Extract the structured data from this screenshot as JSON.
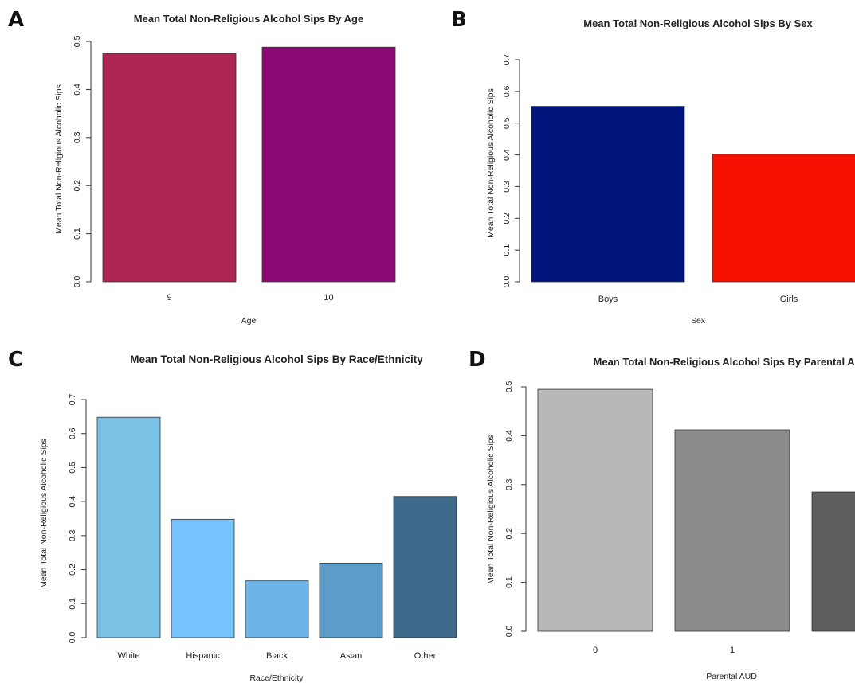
{
  "chart_data": [
    {
      "panel": "A",
      "type": "bar",
      "title": "Mean Total Non-Religious Alcohol Sips By Age",
      "xlabel": "Age",
      "ylabel": "Mean Total Non-Religious Alcoholic Sips",
      "categories": [
        "9",
        "10"
      ],
      "values": [
        0.475,
        0.488
      ],
      "colors": [
        "#ad2553",
        "#8b0a73"
      ],
      "ylim": [
        0,
        0.5
      ],
      "yticks": [
        "0.0",
        "0.1",
        "0.2",
        "0.3",
        "0.4",
        "0.5"
      ],
      "grid": false
    },
    {
      "panel": "B",
      "type": "bar",
      "title": "Mean Total Non-Religious Alcohol Sips By Sex",
      "xlabel": "Sex",
      "ylabel": "Mean Total Non-Religious Alcoholic Sips",
      "categories": [
        "Boys",
        "Girls"
      ],
      "values": [
        0.553,
        0.402
      ],
      "colors": [
        "#00137a",
        "#f51000"
      ],
      "ylim": [
        0,
        0.7
      ],
      "yticks": [
        "0.0",
        "0.1",
        "0.2",
        "0.3",
        "0.4",
        "0.5",
        "0.6",
        "0.7"
      ],
      "grid": false
    },
    {
      "panel": "C",
      "type": "bar",
      "title": "Mean Total Non-Religious Alcohol Sips By Race/Ethnicity",
      "xlabel": "Race/Ethnicity",
      "ylabel": "Mean Total Non-Religious Alcoholic Sips",
      "categories": [
        "White",
        "Hispanic",
        "Black",
        "Asian",
        "Other"
      ],
      "values": [
        0.648,
        0.348,
        0.167,
        0.219,
        0.415
      ],
      "colors": [
        "#7bc3e6",
        "#76c3fe",
        "#6db4e9",
        "#5b9cc9",
        "#3d6a8b"
      ],
      "ylim": [
        0,
        0.7
      ],
      "yticks": [
        "0.0",
        "0.1",
        "0.2",
        "0.3",
        "0.4",
        "0.5",
        "0.6",
        "0.7"
      ],
      "grid": false
    },
    {
      "panel": "D",
      "type": "bar",
      "title": "Mean Total Non-Religious Alcohol Sips By Parental AUD",
      "xlabel": "Parental AUD",
      "ylabel": "Mean Total Non-Religious Alcoholic Sips",
      "categories": [
        "0",
        "1",
        ""
      ],
      "values": [
        0.495,
        0.412,
        0.285
      ],
      "colors": [
        "#b8b8b8",
        "#8b8b8b",
        "#5e5e5e"
      ],
      "ylim": [
        0,
        0.5
      ],
      "yticks": [
        "0.0",
        "0.1",
        "0.2",
        "0.3",
        "0.4",
        "0.5"
      ],
      "grid": false
    }
  ]
}
